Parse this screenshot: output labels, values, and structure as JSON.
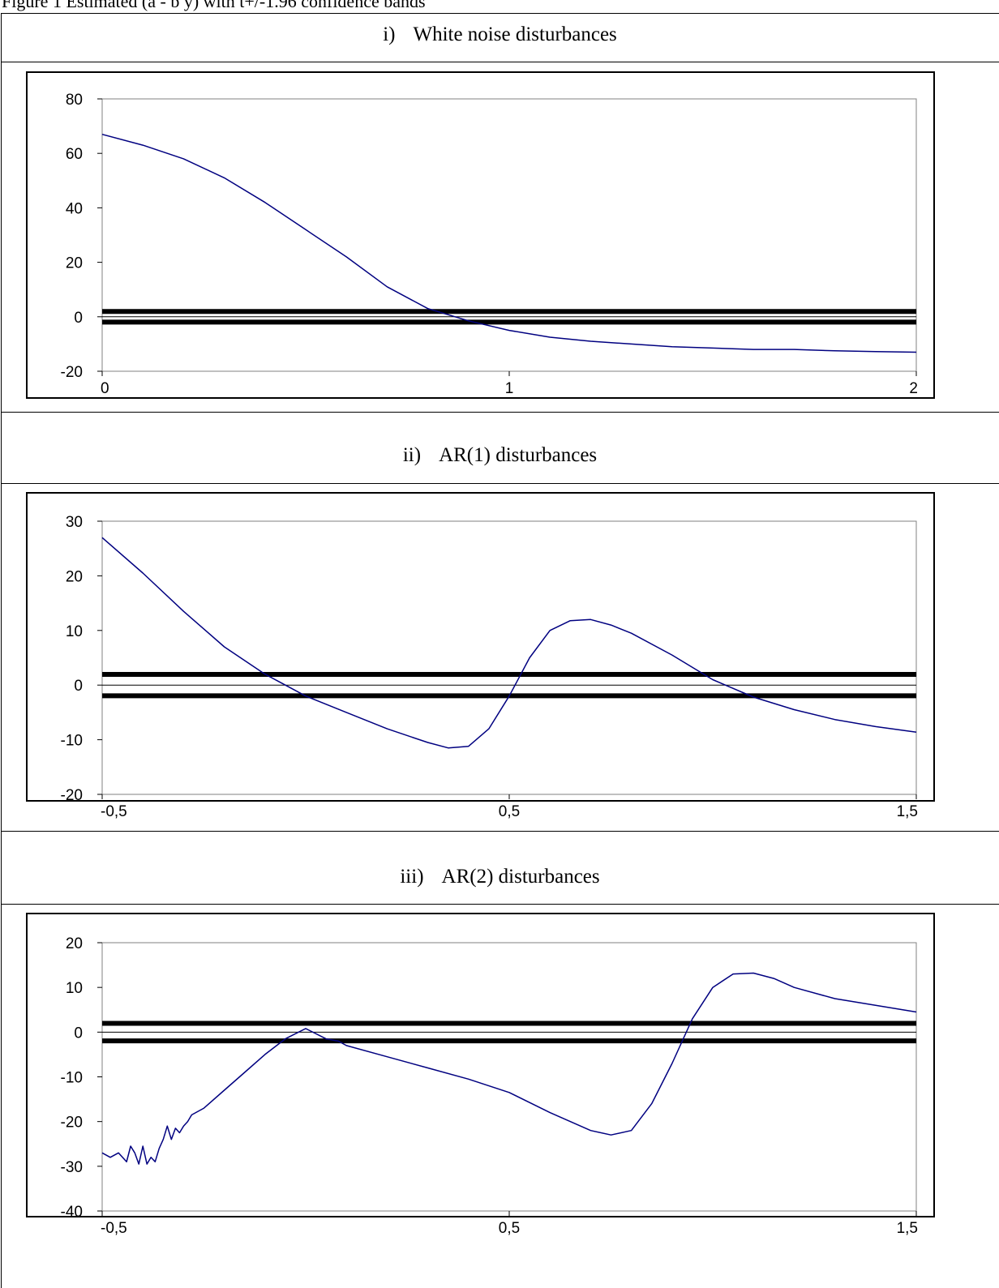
{
  "clipped_heading": "Figure 1 Estimated (a - b y) with t+/-1.96 confidence bands",
  "chart_data": [
    {
      "type": "line",
      "title_num": "i)",
      "title": "White noise disturbances",
      "ylim": [
        -20,
        80
      ],
      "yticks": [
        "80",
        "60",
        "40",
        "20",
        "0",
        "-20"
      ],
      "ytick_values": [
        80,
        60,
        40,
        20,
        0,
        -20
      ],
      "xlim": [
        0,
        2
      ],
      "xticks": [
        "0",
        "1",
        "2"
      ],
      "xtick_values": [
        0,
        1,
        2
      ],
      "grid": false,
      "bands": [
        1.96,
        -1.96
      ],
      "series": [
        {
          "color": "#000080",
          "x": [
            0,
            0.1,
            0.2,
            0.3,
            0.4,
            0.5,
            0.6,
            0.7,
            0.8,
            0.9,
            1.0,
            1.1,
            1.2,
            1.3,
            1.4,
            1.5,
            1.6,
            1.7,
            1.8,
            1.9,
            2.0
          ],
          "y": [
            67,
            63,
            58,
            51,
            42,
            32,
            22,
            11,
            3,
            -1.5,
            -5,
            -7.5,
            -9,
            -10,
            -11,
            -11.5,
            -12,
            -12,
            -12.5,
            -12.8,
            -13
          ]
        }
      ]
    },
    {
      "type": "line",
      "title_num": "ii)",
      "title": "AR(1) disturbances",
      "ylim": [
        -20,
        30
      ],
      "yticks": [
        "30",
        "20",
        "10",
        "0",
        "-10",
        "-20"
      ],
      "ytick_values": [
        30,
        20,
        10,
        0,
        -10,
        -20
      ],
      "xlim": [
        -0.5,
        1.5
      ],
      "xticks": [
        "-0,5",
        "0,5",
        "1,5"
      ],
      "xtick_values": [
        -0.5,
        0.5,
        1.5
      ],
      "grid": false,
      "bands": [
        1.96,
        -1.96
      ],
      "series": [
        {
          "color": "#000080",
          "x": [
            -0.5,
            -0.4,
            -0.3,
            -0.2,
            -0.1,
            0,
            0.1,
            0.2,
            0.3,
            0.35,
            0.4,
            0.45,
            0.5,
            0.55,
            0.6,
            0.65,
            0.7,
            0.75,
            0.8,
            0.9,
            1.0,
            1.1,
            1.2,
            1.3,
            1.4,
            1.5
          ],
          "y": [
            27,
            20.5,
            13.5,
            7,
            2,
            -2,
            -5,
            -8,
            -10.5,
            -11.5,
            -11.2,
            -8,
            -2,
            5,
            10,
            11.8,
            12,
            11,
            9.5,
            5.5,
            1,
            -2.2,
            -4.5,
            -6.3,
            -7.6,
            -8.6
          ]
        }
      ]
    },
    {
      "type": "line",
      "title_num": "iii)",
      "title": "AR(2) disturbances",
      "ylim": [
        -40,
        20
      ],
      "yticks": [
        "20",
        "10",
        "0",
        "-10",
        "-20",
        "-30",
        "-40"
      ],
      "ytick_values": [
        20,
        10,
        0,
        -10,
        -20,
        -30,
        -40
      ],
      "xlim": [
        -0.5,
        1.5
      ],
      "xticks": [
        "-0,5",
        "0,5",
        "1,5"
      ],
      "xtick_values": [
        -0.5,
        0.5,
        1.5
      ],
      "grid": false,
      "bands": [
        1.96,
        -1.96
      ],
      "series": [
        {
          "color": "#000080",
          "x": [
            -0.5,
            -0.48,
            -0.46,
            -0.44,
            -0.43,
            -0.42,
            -0.41,
            -0.4,
            -0.39,
            -0.38,
            -0.37,
            -0.36,
            -0.35,
            -0.34,
            -0.33,
            -0.32,
            -0.31,
            -0.3,
            -0.29,
            -0.28,
            -0.25,
            -0.2,
            -0.15,
            -0.1,
            -0.05,
            0,
            0.05,
            0.08,
            0.1,
            0.2,
            0.3,
            0.4,
            0.5,
            0.6,
            0.7,
            0.75,
            0.8,
            0.85,
            0.9,
            0.95,
            1.0,
            1.05,
            1.1,
            1.15,
            1.2,
            1.3,
            1.4,
            1.5
          ],
          "y": [
            -27,
            -28,
            -27,
            -29,
            -25.5,
            -27,
            -29.5,
            -25.5,
            -29.5,
            -28,
            -29,
            -26,
            -24,
            -21,
            -24,
            -21.5,
            -22.5,
            -21,
            -20,
            -18.5,
            -17,
            -13,
            -9,
            -5,
            -1.5,
            0.8,
            -1.5,
            -2,
            -3,
            -5.5,
            -8,
            -10.5,
            -13.5,
            -18,
            -22,
            -23,
            -22,
            -16,
            -7,
            3,
            10,
            13,
            13.2,
            12,
            10,
            7.5,
            6,
            4.5
          ]
        }
      ]
    }
  ]
}
